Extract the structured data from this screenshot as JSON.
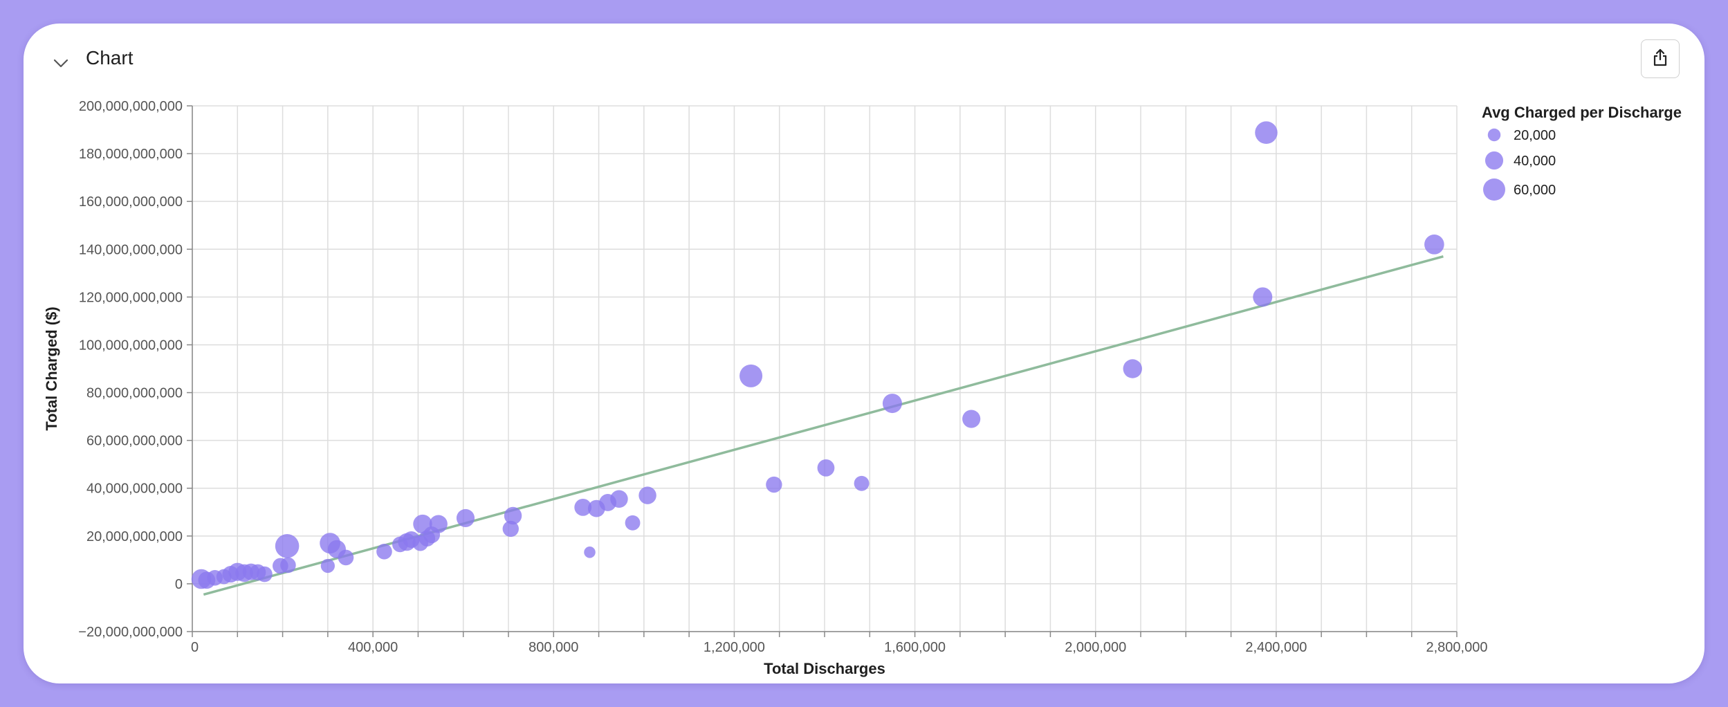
{
  "card": {
    "title": "Chart"
  },
  "icons": {
    "collapse": "chevron-down-icon",
    "share": "share-icon"
  },
  "colors": {
    "background": "#a99cf2",
    "bubble": "#8a79ee",
    "trend": "#8fbb9c",
    "grid": "#dddddd"
  },
  "chart_data": {
    "type": "scatter",
    "subtype": "bubble",
    "xlabel": "Total Discharges",
    "ylabel": "Total Charged ($)",
    "xlim": [
      0,
      2800000
    ],
    "ylim": [
      -20000000000,
      200000000000
    ],
    "x_ticks": [
      0,
      400000,
      800000,
      1200000,
      1600000,
      2000000,
      2400000,
      2800000
    ],
    "x_tick_labels": [
      "0",
      "400,000",
      "800,000",
      "1,200,000",
      "1,600,000",
      "2,000,000",
      "2,400,000",
      "2,800,000"
    ],
    "x_minor_step": 100000,
    "y_ticks": [
      -20000000000,
      0,
      20000000000,
      40000000000,
      60000000000,
      80000000000,
      100000000000,
      120000000000,
      140000000000,
      160000000000,
      180000000000,
      200000000000
    ],
    "y_tick_labels": [
      "−20,000,000,000",
      "0",
      "20,000,000,000",
      "40,000,000,000",
      "60,000,000,000",
      "80,000,000,000",
      "100,000,000,000",
      "120,000,000,000",
      "140,000,000,000",
      "160,000,000,000",
      "180,000,000,000",
      "200,000,000,000"
    ],
    "grid": true,
    "size_legend": {
      "title": "Avg Charged per Discharge",
      "position": "right",
      "entries": [
        {
          "label": "20,000",
          "value": 20000
        },
        {
          "label": "40,000",
          "value": 40000
        },
        {
          "label": "60,000",
          "value": 60000
        }
      ]
    },
    "trendline": {
      "x": [
        25000,
        2770000
      ],
      "y": [
        -4500000000,
        137000000000
      ]
    },
    "points": [
      {
        "x": 20000,
        "y": 2000000000,
        "size": 48000
      },
      {
        "x": 32000,
        "y": 1500000000,
        "size": 36000
      },
      {
        "x": 50000,
        "y": 2500000000,
        "size": 30000
      },
      {
        "x": 70000,
        "y": 3000000000,
        "size": 28000
      },
      {
        "x": 85000,
        "y": 4000000000,
        "size": 34000
      },
      {
        "x": 100000,
        "y": 5000000000,
        "size": 40000
      },
      {
        "x": 115000,
        "y": 4500000000,
        "size": 38000
      },
      {
        "x": 130000,
        "y": 5000000000,
        "size": 34000
      },
      {
        "x": 145000,
        "y": 4800000000,
        "size": 32000
      },
      {
        "x": 160000,
        "y": 4000000000,
        "size": 30000
      },
      {
        "x": 195000,
        "y": 7500000000,
        "size": 30000
      },
      {
        "x": 210000,
        "y": 15800000000,
        "size": 70000
      },
      {
        "x": 212000,
        "y": 7800000000,
        "size": 30000
      },
      {
        "x": 300000,
        "y": 7500000000,
        "size": 24000
      },
      {
        "x": 305000,
        "y": 17000000000,
        "size": 52000
      },
      {
        "x": 320000,
        "y": 14500000000,
        "size": 40000
      },
      {
        "x": 340000,
        "y": 11000000000,
        "size": 30000
      },
      {
        "x": 425000,
        "y": 13500000000,
        "size": 30000
      },
      {
        "x": 460000,
        "y": 16500000000,
        "size": 30000
      },
      {
        "x": 475000,
        "y": 17500000000,
        "size": 38000
      },
      {
        "x": 485000,
        "y": 18500000000,
        "size": 34000
      },
      {
        "x": 505000,
        "y": 17000000000,
        "size": 30000
      },
      {
        "x": 510000,
        "y": 25000000000,
        "size": 44000
      },
      {
        "x": 520000,
        "y": 19000000000,
        "size": 32000
      },
      {
        "x": 530000,
        "y": 20500000000,
        "size": 34000
      },
      {
        "x": 545000,
        "y": 25000000000,
        "size": 40000
      },
      {
        "x": 605000,
        "y": 27500000000,
        "size": 40000
      },
      {
        "x": 705000,
        "y": 23000000000,
        "size": 32000
      },
      {
        "x": 710000,
        "y": 28500000000,
        "size": 38000
      },
      {
        "x": 865000,
        "y": 32000000000,
        "size": 36000
      },
      {
        "x": 880000,
        "y": 13200000000,
        "size": 16000
      },
      {
        "x": 895000,
        "y": 31500000000,
        "size": 36000
      },
      {
        "x": 920000,
        "y": 34000000000,
        "size": 36000
      },
      {
        "x": 945000,
        "y": 35500000000,
        "size": 38000
      },
      {
        "x": 975000,
        "y": 25500000000,
        "size": 28000
      },
      {
        "x": 1008000,
        "y": 37000000000,
        "size": 38000
      },
      {
        "x": 1237000,
        "y": 87000000000,
        "size": 64000
      },
      {
        "x": 1288000,
        "y": 41500000000,
        "size": 32000
      },
      {
        "x": 1403000,
        "y": 48500000000,
        "size": 36000
      },
      {
        "x": 1482000,
        "y": 42000000000,
        "size": 28000
      },
      {
        "x": 1550000,
        "y": 75500000000,
        "size": 46000
      },
      {
        "x": 1725000,
        "y": 69000000000,
        "size": 40000
      },
      {
        "x": 2082000,
        "y": 90000000000,
        "size": 44000
      },
      {
        "x": 2370000,
        "y": 120000000000,
        "size": 46000
      },
      {
        "x": 2378000,
        "y": 188800000000,
        "size": 62000
      },
      {
        "x": 2750000,
        "y": 142000000000,
        "size": 48000
      }
    ]
  }
}
